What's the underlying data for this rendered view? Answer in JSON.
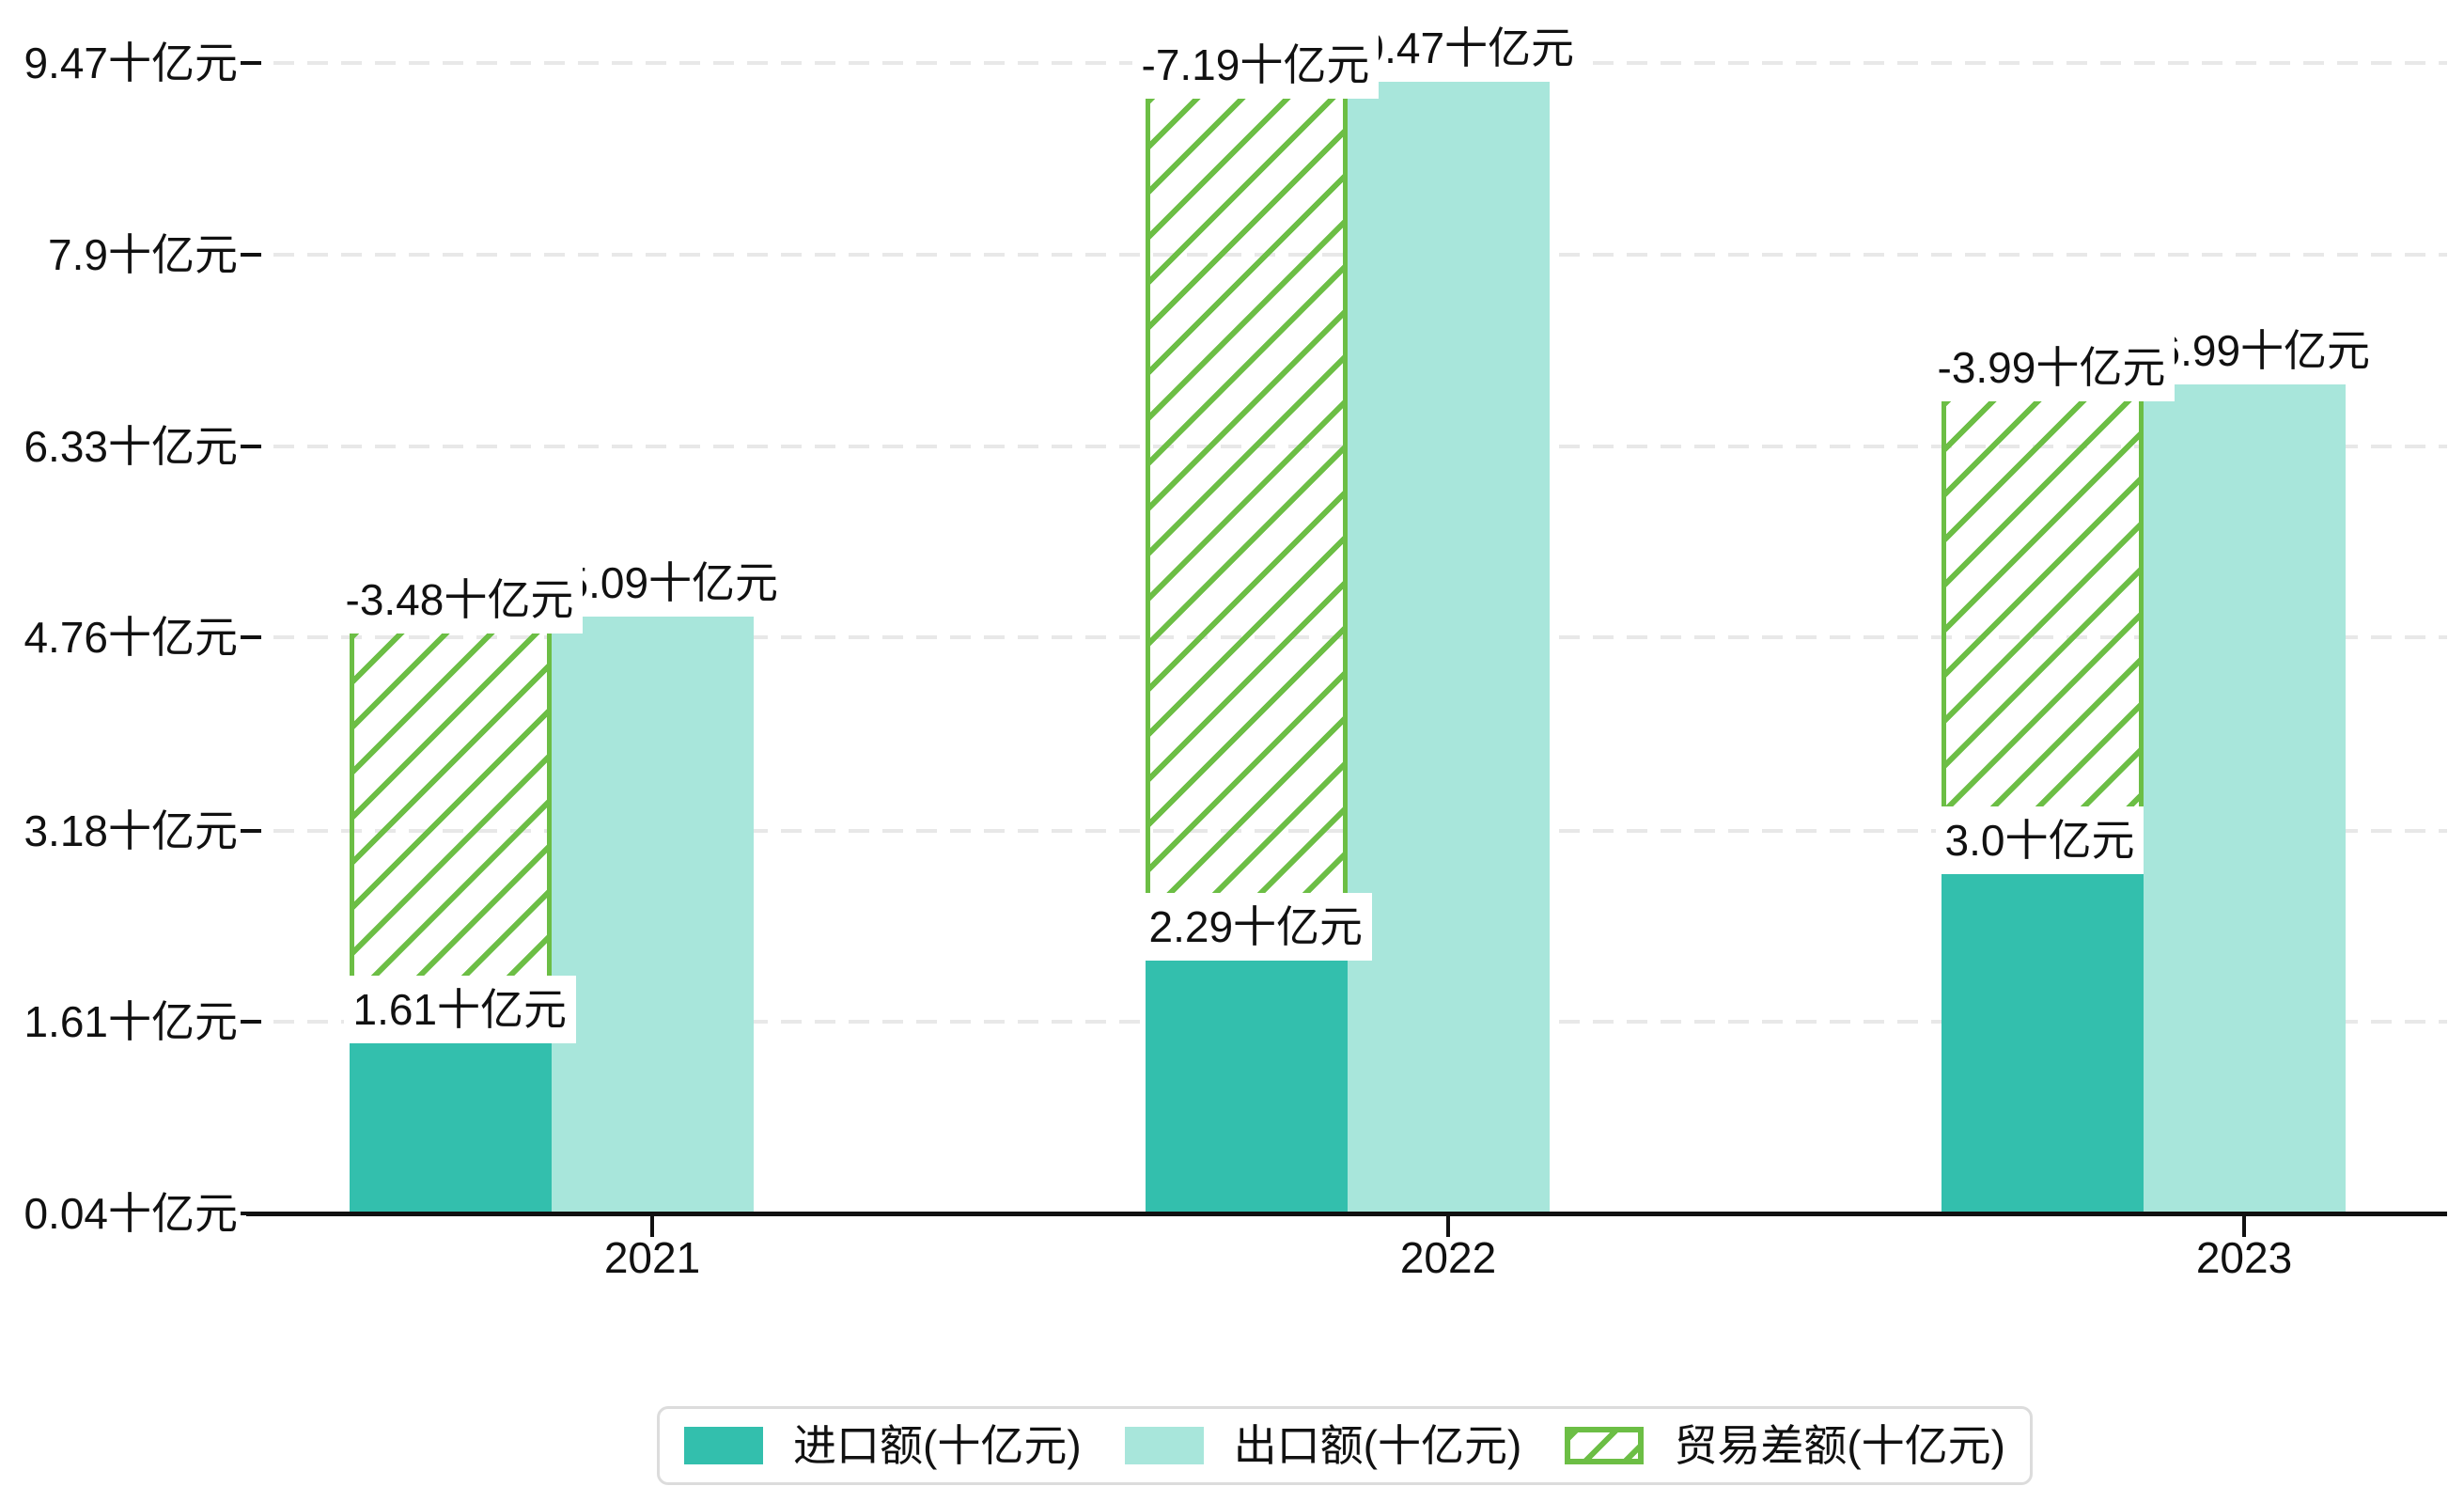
{
  "chart_data": {
    "type": "bar",
    "title": "",
    "categories": [
      "2021",
      "2022",
      "2023"
    ],
    "series": [
      {
        "name": "进口额(十亿元)",
        "role": "import",
        "style": "solid",
        "color": "#33BFAD",
        "values": [
          1.61,
          2.29,
          3.0
        ],
        "data_labels": [
          "1.61十亿元",
          "2.29十亿元",
          "3.0十亿元"
        ]
      },
      {
        "name": "出口额(十亿元)",
        "role": "export",
        "style": "solid",
        "color": "#A8E6DB",
        "values": [
          5.09,
          9.47,
          6.99
        ],
        "data_labels": [
          "5.09十亿元",
          "9.47十亿元",
          "6.99十亿元"
        ],
        "data_labels_visible": [
          "09十亿元",
          "47十亿元",
          "99十亿元"
        ]
      },
      {
        "name": "贸易差额(十亿元)",
        "role": "trade-balance",
        "style": "hatched",
        "color": "#6CBE45",
        "values": [
          -3.48,
          -7.19,
          -3.99
        ],
        "data_labels": [
          "-3.48十亿元",
          "-7.19十亿元",
          "-3.99十亿元"
        ]
      }
    ],
    "unit": "十亿元",
    "y_axis": {
      "min": 0.04,
      "max": 9.47,
      "grid": "dashed",
      "ticks": [
        {
          "label": "9.47十亿元",
          "value": 9.47
        },
        {
          "label": "7.9十亿元",
          "value": 7.9
        },
        {
          "label": "6.33十亿元",
          "value": 6.33
        },
        {
          "label": "4.76十亿元",
          "value": 4.76
        },
        {
          "label": "3.18十亿元",
          "value": 3.18
        },
        {
          "label": "1.61十亿元",
          "value": 1.61
        },
        {
          "label": "0.04十亿元",
          "value": 0.04
        }
      ]
    },
    "legend": {
      "position": "bottom",
      "items": [
        "进口额(十亿元)",
        "出口额(十亿元)",
        "贸易差额(十亿元)"
      ]
    }
  },
  "colors": {
    "import_teal": "#33BFAD",
    "export_light_teal": "#A8E6DB",
    "balance_green": "#6CBE45",
    "axis_text": "#111111",
    "gridline": "#e8e8e8",
    "label_background": "#ffffff",
    "legend_border": "#dcdcdc"
  }
}
